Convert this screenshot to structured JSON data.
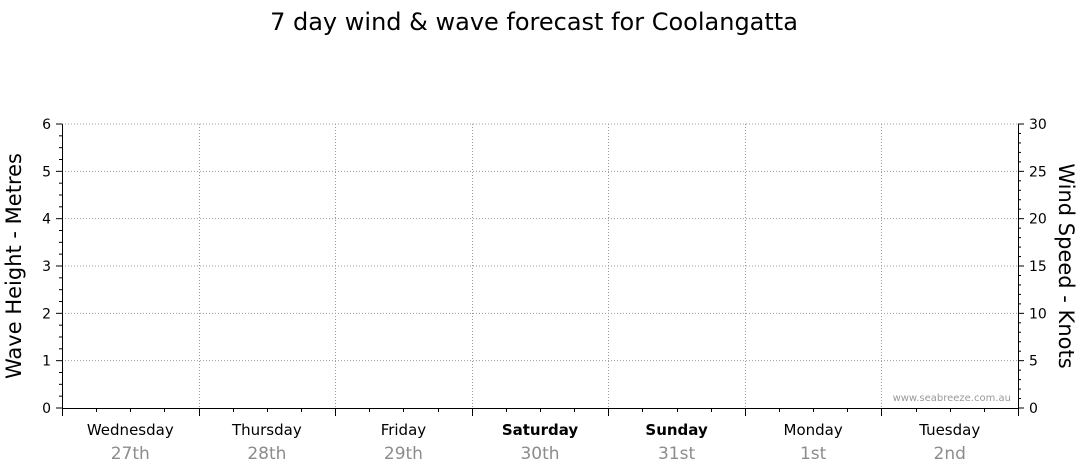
{
  "chart_data": {
    "type": "line",
    "title": "7 day wind & wave forecast for Coolangatta",
    "ylabel_left": "Wave Height - Metres",
    "ylabel_right": "Wind Speed - Knots",
    "ylim_left": [
      0,
      6
    ],
    "ylim_right": [
      0,
      30
    ],
    "yticks_left": [
      "0",
      "1",
      "2",
      "3",
      "4",
      "5",
      "6"
    ],
    "yticks_right": [
      "0",
      "5",
      "10",
      "15",
      "20",
      "25",
      "30"
    ],
    "grid": true,
    "days": [
      {
        "name": "Wednesday",
        "date": "27th",
        "bold": false
      },
      {
        "name": "Thursday",
        "date": "28th",
        "bold": false
      },
      {
        "name": "Friday",
        "date": "29th",
        "bold": false
      },
      {
        "name": "Saturday",
        "date": "30th",
        "bold": true
      },
      {
        "name": "Sunday",
        "date": "31st",
        "bold": true
      },
      {
        "name": "Monday",
        "date": "1st",
        "bold": false
      },
      {
        "name": "Tuesday",
        "date": "2nd",
        "bold": false
      }
    ],
    "series": []
  },
  "watermark": "www.seabreeze.com.au"
}
